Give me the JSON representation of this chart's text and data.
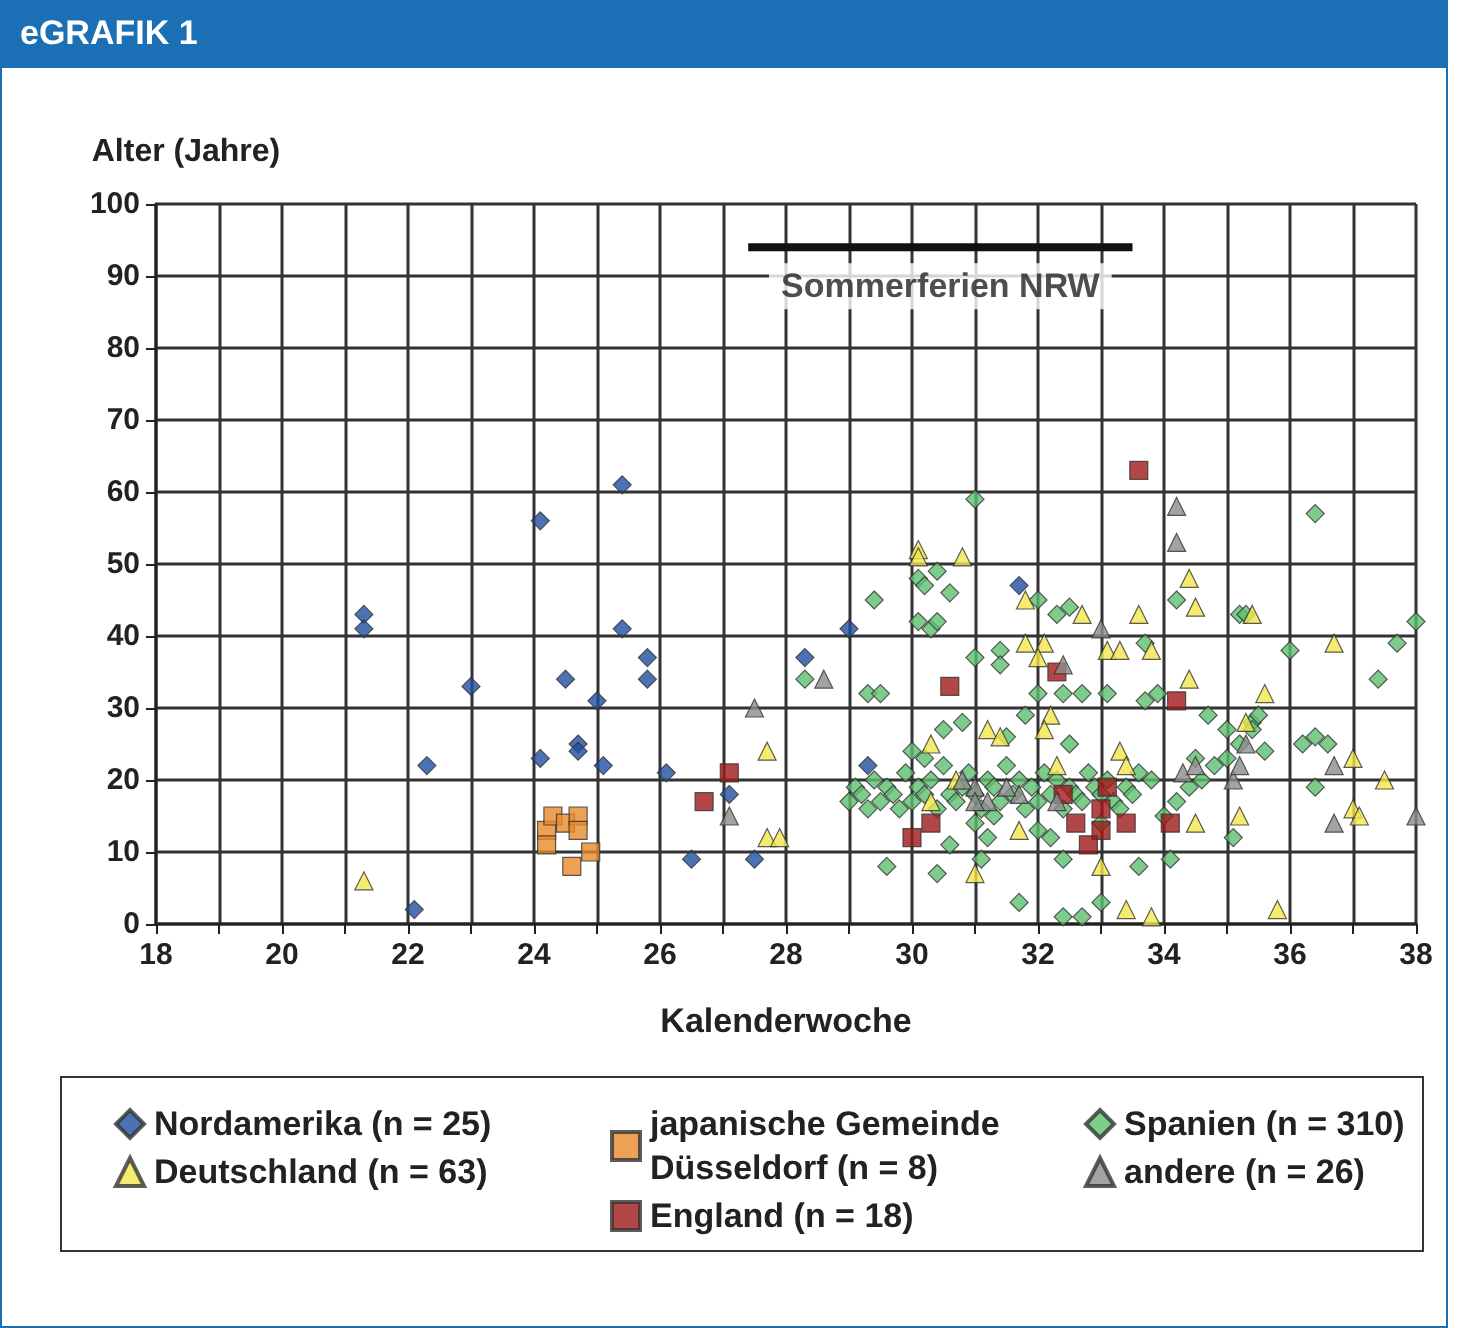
{
  "chart_data": {
    "type": "scatter",
    "title": "eGRAFIK 1",
    "xlabel": "Kalenderwoche",
    "ylabel": "Alter (Jahre)",
    "xlim": [
      18,
      38
    ],
    "xticks": [
      18,
      {
        "value": 19,
        "label": null
      },
      20,
      {
        "value": 21,
        "label": null
      },
      22,
      {
        "value": 23,
        "label": null
      },
      24,
      {
        "value": 25,
        "label": null
      },
      26,
      {
        "value": 27,
        "label": null
      },
      28,
      {
        "value": 29,
        "label": null
      },
      30,
      {
        "value": 31,
        "label": null
      },
      32,
      {
        "value": 33,
        "label": null
      },
      34,
      {
        "value": 35,
        "label": null
      },
      36,
      {
        "value": 37,
        "label": null
      },
      38
    ],
    "ylim": [
      0,
      100
    ],
    "yticks": [
      0,
      10,
      20,
      30,
      40,
      50,
      60,
      70,
      80,
      90,
      100
    ],
    "grid": true,
    "legend": "bottom",
    "annotations": [
      {
        "text": "Sommerferien NRW",
        "x": 30.45,
        "y": 94
      }
    ],
    "series": [
      {
        "name": "Nordamerika (n = 25)",
        "color": "#1f4fa0",
        "marker": "diamond",
        "x": [
          21.3,
          21.3,
          22.1,
          22.3,
          23.0,
          24.1,
          25.4,
          25.4,
          25.8,
          25.8,
          24.5,
          25.0,
          24.1,
          24.7,
          24.7,
          25.1,
          26.1,
          26.5,
          27.1,
          27.5,
          31.7,
          29.0,
          28.3,
          29.3
        ],
        "values": [
          43,
          41,
          2,
          22,
          33,
          56,
          61,
          41,
          37,
          34,
          34,
          31,
          23,
          25,
          24,
          22,
          21,
          9,
          18,
          9,
          47,
          41,
          37,
          22
        ]
      },
      {
        "name": "japanische Gemeinde Düsseldorf (n = 8)",
        "color": "#e8892a",
        "marker": "square",
        "x": [
          24.2,
          24.2,
          24.3,
          24.5,
          24.7,
          24.7,
          24.6,
          24.9
        ],
        "values": [
          13,
          11,
          15,
          14,
          15,
          13,
          8,
          10
        ]
      },
      {
        "name": "Spanien (n = 310)",
        "color": "#5cbf6e",
        "marker": "diamond",
        "x": [
          31.0,
          36.4,
          38.0,
          37.7,
          37.4,
          36.0,
          29.4,
          30.1,
          30.2,
          30.4,
          30.6,
          30.1,
          30.3,
          30.4,
          32.0,
          32.3,
          32.5,
          34.2,
          35.2,
          35.3,
          33.7,
          28.3,
          29.3,
          29.5,
          31.0,
          31.4,
          31.4,
          32.0,
          32.4,
          32.7,
          33.1,
          33.7,
          33.9,
          34.7,
          35.0,
          35.4,
          35.5,
          36.2,
          36.4,
          36.6,
          36.4,
          29.6,
          30.4,
          31.1,
          31.7,
          32.4,
          32.7,
          33.0,
          32.4,
          33.6,
          34.1,
          30.6,
          31.2,
          29.0,
          29.1,
          29.2,
          29.3,
          29.4,
          29.5,
          29.6,
          29.7,
          29.8,
          29.9,
          30.0,
          30.1,
          30.2,
          30.3,
          30.4,
          30.5,
          30.6,
          30.7,
          30.8,
          30.9,
          31.0,
          31.1,
          31.2,
          31.3,
          31.4,
          31.5,
          31.6,
          31.7,
          31.8,
          31.9,
          32.0,
          32.1,
          32.2,
          32.3,
          32.4,
          32.5,
          32.6,
          32.7,
          32.8,
          32.9,
          33.0,
          33.1,
          33.2,
          33.3,
          33.4,
          33.5,
          33.6,
          33.8,
          34.0,
          34.2,
          34.4,
          34.6,
          34.8,
          35.0,
          35.2,
          35.4,
          35.6,
          30.0,
          30.5,
          31.0,
          31.5,
          32.0,
          32.5,
          33.0,
          30.2,
          30.8,
          31.3,
          31.8,
          32.2,
          34.5,
          35.1
        ],
        "values": [
          59,
          57,
          42,
          39,
          34,
          38,
          45,
          48,
          47,
          49,
          46,
          42,
          41,
          42,
          45,
          43,
          44,
          45,
          43,
          43,
          39,
          34,
          32,
          32,
          37,
          38,
          36,
          32,
          32,
          32,
          32,
          31,
          32,
          29,
          27,
          28,
          29,
          25,
          26,
          25,
          19,
          8,
          7,
          9,
          3,
          1,
          1,
          3,
          9,
          8,
          9,
          11,
          12,
          17,
          19,
          18,
          16,
          20,
          17,
          19,
          18,
          16,
          21,
          17,
          19,
          18,
          20,
          16,
          22,
          18,
          17,
          19,
          21,
          18,
          16,
          20,
          19,
          17,
          22,
          18,
          20,
          16,
          19,
          17,
          21,
          18,
          20,
          16,
          19,
          18,
          17,
          21,
          19,
          18,
          20,
          17,
          16,
          19,
          18,
          21,
          20,
          15,
          17,
          19,
          20,
          22,
          23,
          25,
          27,
          24,
          24,
          27,
          14,
          26,
          13,
          25,
          14,
          23,
          28,
          15,
          29,
          12,
          23,
          12
        ]
      },
      {
        "name": "Deutschland (n = 63)",
        "color": "#f2e64a",
        "marker": "triangle",
        "x": [
          21.3,
          27.7,
          27.7,
          27.9,
          30.1,
          30.1,
          30.8,
          31.8,
          32.7,
          33.6,
          34.4,
          34.5,
          35.4,
          36.7,
          31.8,
          32.1,
          32.0,
          33.1,
          33.3,
          33.8,
          34.4,
          35.6,
          32.2,
          31.2,
          31.4,
          32.1,
          33.3,
          33.4,
          35.3,
          37.0,
          37.5,
          37.0,
          37.1,
          35.2,
          34.5,
          31.7,
          31.0,
          33.0,
          33.4,
          33.8,
          35.8,
          30.3,
          30.3,
          30.7,
          32.3
        ],
        "values": [
          6,
          24,
          12,
          12,
          52,
          51,
          51,
          45,
          43,
          43,
          48,
          44,
          43,
          39,
          39,
          39,
          37,
          38,
          38,
          38,
          34,
          32,
          29,
          27,
          26,
          27,
          24,
          22,
          28,
          23,
          20,
          16,
          15,
          15,
          14,
          13,
          7,
          8,
          2,
          1,
          2,
          25,
          17,
          20,
          22
        ]
      },
      {
        "name": "England (n = 18)",
        "color": "#a01818",
        "marker": "square",
        "x": [
          26.7,
          27.1,
          33.6,
          30.6,
          32.3,
          34.2,
          30.0,
          30.3,
          32.6,
          33.0,
          32.8,
          33.1,
          33.4,
          34.1,
          33.0,
          32.4
        ],
        "values": [
          17,
          21,
          63,
          33,
          35,
          31,
          12,
          14,
          14,
          13,
          11,
          19,
          14,
          14,
          16,
          18
        ]
      },
      {
        "type": "line",
        "color": "#111111",
        "marker": "none",
        "line_style": "solid",
        "x": [
          27.4,
          33.5
        ],
        "values": [
          94,
          94
        ]
      },
      {
        "name": "andere (n = 26)",
        "color": "#8c8c8c",
        "marker": "triangle",
        "x": [
          27.5,
          27.1,
          28.6,
          34.2,
          34.2,
          33.0,
          32.4,
          34.3,
          34.5,
          35.1,
          35.2,
          35.3,
          36.7,
          36.7,
          38.0,
          31.0,
          31.2,
          31.7,
          30.8,
          31.0,
          31.5,
          32.3
        ],
        "values": [
          30,
          15,
          34,
          58,
          53,
          41,
          36,
          21,
          22,
          20,
          22,
          25,
          22,
          14,
          15,
          19,
          17,
          18,
          20,
          17,
          19,
          17
        ]
      }
    ]
  }
}
